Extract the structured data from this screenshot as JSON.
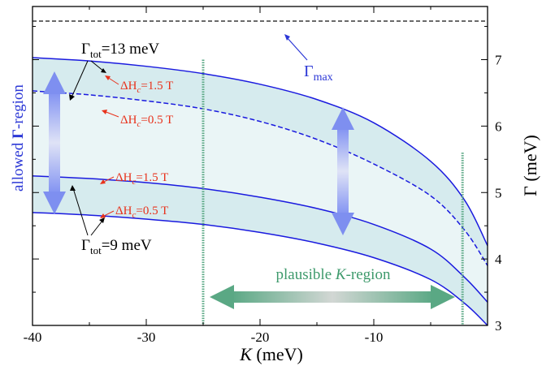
{
  "chart_data": {
    "type": "line",
    "xlabel_main": "K",
    "xlabel_unit": " (meV)",
    "ylabel_main": "Γ",
    "ylabel_unit": " (meV)",
    "xlim": [
      -40,
      0
    ],
    "ylim": [
      3,
      7.8
    ],
    "x_ticks": [
      -40,
      -30,
      -20,
      -10
    ],
    "x_tick_labels": [
      "-40",
      "-30",
      "-20",
      "-10"
    ],
    "y_ticks": [
      3,
      4,
      5,
      6,
      7
    ],
    "y_tick_labels": [
      "3",
      "4",
      "5",
      "6",
      "7"
    ],
    "gamma_max": 7.58,
    "gamma_max_label": "Γ",
    "gamma_max_sub": "max",
    "series": [
      {
        "style": "solid",
        "x": [
          -40,
          -35,
          -30,
          -25,
          -20,
          -15,
          -10,
          -5,
          -2,
          0
        ],
        "y": [
          7.03,
          6.98,
          6.9,
          6.79,
          6.63,
          6.4,
          6.05,
          5.47,
          4.88,
          4.2
        ]
      },
      {
        "style": "dashed",
        "x": [
          -40,
          -35,
          -30,
          -25,
          -20,
          -15,
          -10,
          -5,
          -2,
          0
        ],
        "y": [
          6.53,
          6.47,
          6.38,
          6.26,
          6.07,
          5.8,
          5.43,
          4.95,
          4.43,
          3.9
        ]
      },
      {
        "style": "solid",
        "x": [
          -40,
          -35,
          -30,
          -25,
          -20,
          -15,
          -10,
          -5,
          -2,
          0
        ],
        "y": [
          5.25,
          5.21,
          5.15,
          5.06,
          4.93,
          4.76,
          4.52,
          4.15,
          3.72,
          3.35
        ]
      },
      {
        "style": "solid",
        "x": [
          -40,
          -35,
          -30,
          -25,
          -20,
          -15,
          -10,
          -5,
          -2,
          0
        ],
        "y": [
          4.7,
          4.66,
          4.6,
          4.52,
          4.4,
          4.24,
          4.02,
          3.69,
          3.33,
          3.0
        ]
      }
    ],
    "k_region": [
      -25,
      -2.2
    ],
    "annotations": {
      "gtot_top_main": "Γ",
      "gtot_top_sub": "tot",
      "gtot_top_value": "=13 meV",
      "gtot_bot_main": "Γ",
      "gtot_bot_sub": "tot",
      "gtot_bot_value": "=9 meV",
      "dh_prefix": "ΔH",
      "dh_sub": "c",
      "dh_15": "=1.5 T",
      "dh_05": "=0.5 T",
      "allowed_pre": "allowed ",
      "allowed_gamma": "Γ",
      "allowed_post": "-region",
      "plausible_pre": "plausible ",
      "plausible_k": "K",
      "plausible_post": "-region"
    },
    "colors": {
      "curve": "#1a1adf",
      "band_fill": "#d6ebee",
      "band_top": "#cfe5e8",
      "band_bottom": "#cfe5e8",
      "red_label": "#e8321c",
      "green": "#5aa884",
      "arrow_blue": "#7e8ff0",
      "gamma_max_color": "#2b37d6"
    }
  }
}
